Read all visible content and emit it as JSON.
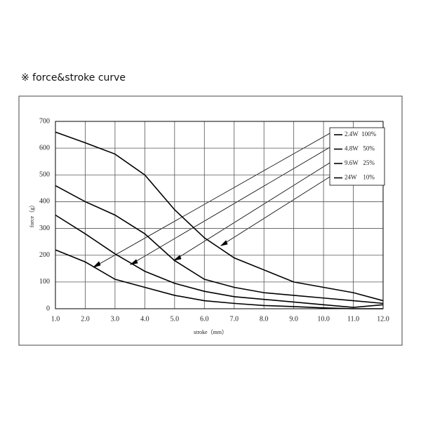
{
  "chart_data": {
    "type": "line",
    "title": "※  force&stroke curve",
    "x_label": "stroke（mm）",
    "y_label": "force（g）",
    "x": [
      1,
      2,
      3,
      4,
      5,
      6,
      7,
      8,
      9,
      10,
      11,
      12
    ],
    "series": [
      {
        "name": "2.4W  100%",
        "color": "#000000",
        "values": [
          660,
          620,
          578,
          500,
          370,
          265,
          190,
          145,
          100,
          80,
          60,
          30
        ]
      },
      {
        "name": "4.8W   50%",
        "color": "#000000",
        "values": [
          460,
          400,
          350,
          280,
          180,
          110,
          80,
          60,
          50,
          40,
          30,
          20
        ]
      },
      {
        "name": "9.6W   25%",
        "color": "#000000",
        "values": [
          350,
          280,
          205,
          140,
          95,
          65,
          45,
          35,
          25,
          15,
          5,
          15
        ]
      },
      {
        "name": "24W    10%",
        "color": "#000000",
        "values": [
          220,
          175,
          110,
          80,
          50,
          30,
          20,
          12,
          8,
          3,
          0,
          0
        ]
      }
    ],
    "xlim": [
      1,
      12
    ],
    "ylim": [
      0,
      700
    ],
    "xticks": [
      {
        "value": 1,
        "label": "1.0"
      },
      {
        "value": 2,
        "label": "2.0"
      },
      {
        "value": 3,
        "label": "3.0"
      },
      {
        "value": 4,
        "label": "4.0"
      },
      {
        "value": 5,
        "label": "5.0"
      },
      {
        "value": 6,
        "label": "6.0"
      },
      {
        "value": 7,
        "label": "7.0"
      },
      {
        "value": 8,
        "label": "8.0"
      },
      {
        "value": 9,
        "label": "9.0"
      },
      {
        "value": 10,
        "label": "10.0"
      },
      {
        "value": 11,
        "label": "11.0"
      },
      {
        "value": 12,
        "label": "12.0"
      }
    ],
    "yticks": [
      0,
      100,
      200,
      300,
      400,
      500,
      600,
      700
    ],
    "grid": true,
    "legend": "upper right"
  }
}
